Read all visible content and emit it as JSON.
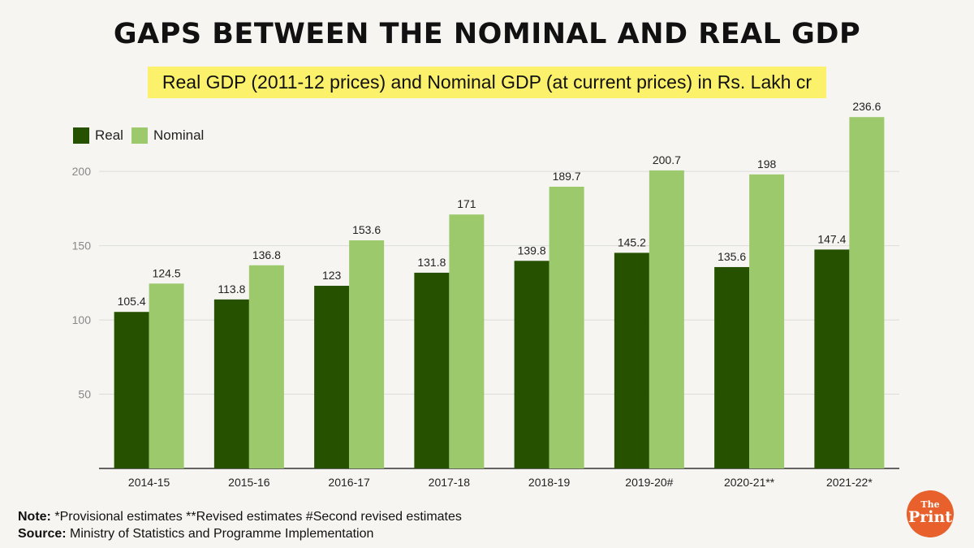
{
  "header": {
    "title": "GAPS BETWEEN THE NOMINAL AND REAL GDP",
    "subtitle": "Real GDP (2011-12 prices) and Nominal GDP (at current prices) in Rs. Lakh cr"
  },
  "colors": {
    "real": "#265200",
    "nominal": "#9cc96b",
    "highlight": "#fbf16a",
    "logo": "#e8602c"
  },
  "chart_data": {
    "type": "bar",
    "title": "",
    "xlabel": "",
    "ylabel": "",
    "ylim": [
      0,
      240
    ],
    "yticks": [
      50,
      100,
      150,
      200
    ],
    "ytick_labels": [
      "50",
      "100",
      "150",
      "200"
    ],
    "grid": true,
    "legend_position": "top-left",
    "categories": [
      "2014-15",
      "2015-16",
      "2016-17",
      "2017-18",
      "2018-19",
      "2019-20#",
      "2020-21**",
      "2021-22*"
    ],
    "series": [
      {
        "name": "Real",
        "values": [
          105.4,
          113.8,
          123,
          131.8,
          139.8,
          145.2,
          135.6,
          147.4
        ],
        "labels": [
          "105.4",
          "113.8",
          "123",
          "131.8",
          "139.8",
          "145.2",
          "135.6",
          "147.4"
        ]
      },
      {
        "name": "Nominal",
        "values": [
          124.5,
          136.8,
          153.6,
          171,
          189.7,
          200.7,
          198,
          236.6
        ],
        "labels": [
          "124.5",
          "136.8",
          "153.6",
          "171",
          "189.7",
          "200.7",
          "198",
          "236.6"
        ]
      }
    ]
  },
  "footer": {
    "note_label": "Note:",
    "note_text": " *Provisional estimates **Revised estimates #Second revised estimates",
    "source_label": "Source:",
    "source_text": " Ministry of Statistics and Programme Implementation"
  },
  "logo": {
    "the": "The",
    "print": "Print"
  }
}
